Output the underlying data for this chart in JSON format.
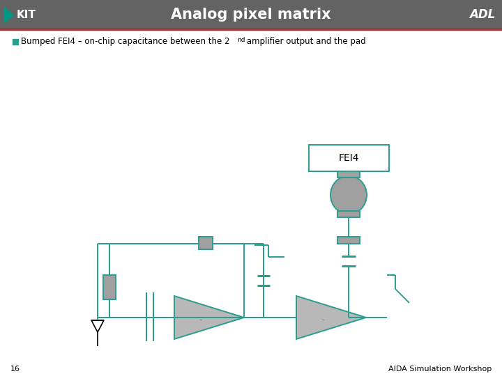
{
  "title": "Analog pixel matrix",
  "bullet_text": "Bumped FEI4 – on-chip capacitance between the 2",
  "bullet_superscript": "nd",
  "bullet_text2": " amplifier output and the pad",
  "header_bg": "#636363",
  "header_text_color": "#ffffff",
  "red_line_color": "#a83030",
  "teal_color": "#2a9d8f",
  "black_color": "#000000",
  "gray_fill": "#a0a0a0",
  "light_gray_fill": "#b8b8b8",
  "slide_number": "16",
  "footer_text": "AIDA Simulation Workshop",
  "kit_green": "#009682",
  "background": "#ffffff",
  "fei4_label": "FEI4"
}
